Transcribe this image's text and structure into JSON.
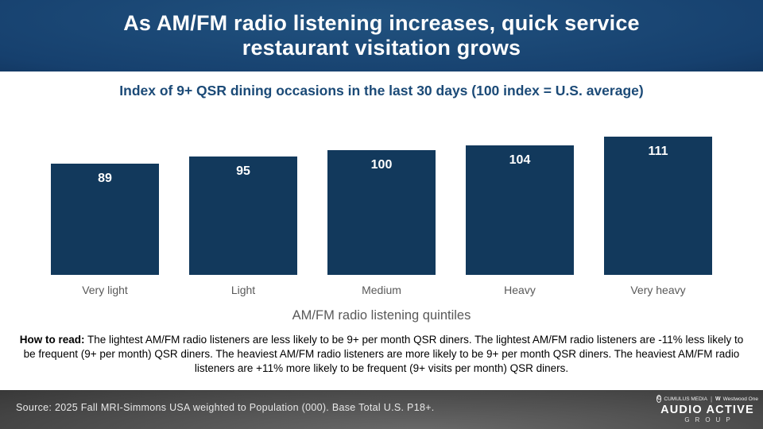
{
  "header": {
    "title_lines": [
      "As AM/FM radio listening increases, quick service",
      "restaurant visitation grows"
    ]
  },
  "chart_data": {
    "type": "bar",
    "title": "Index of 9+ QSR dining occasions in the last 30 days (100 index = U.S. average)",
    "categories": [
      "Very light",
      "Light",
      "Medium",
      "Heavy",
      "Very heavy"
    ],
    "values": [
      89,
      95,
      100,
      104,
      111
    ],
    "xlabel": "AM/FM radio listening quintiles",
    "ylabel": "",
    "ylim": [
      0,
      111
    ],
    "grid": false,
    "legend": false,
    "bar_color": "#12395c",
    "value_label_color": "#ffffff",
    "category_label_color": "#595959"
  },
  "how_to_read": {
    "label": "How to read:",
    "text": " The lightest AM/FM radio listeners are less likely to be 9+ per month QSR diners. The lightest AM/FM radio listeners are -11% less likely to be frequent (9+ per month) QSR diners. The heaviest AM/FM radio listeners are more likely to be 9+ per month QSR diners. The heaviest AM/FM radio listeners are +11% more likely to be frequent (9+ visits per month) QSR diners."
  },
  "footer": {
    "source": "Source: 2025 Fall MRI-Simmons USA weighted to Population (000). Base Total U.S. P18+.",
    "logo": {
      "cumulus_icon": "C",
      "brand_left": "CUMULUS MEDIA",
      "westwood_icon": "W",
      "brand_right": "Westwood One",
      "name": "AUDIO ACTIVE",
      "subname": "GROUP"
    }
  },
  "colors": {
    "header_blue_light": "#21527f",
    "header_blue_dark": "#071631",
    "bar_navy": "#12395c",
    "subtitle_navy": "#1b4a77",
    "label_gray": "#595959",
    "footer_gray_light": "#6a6a6a",
    "footer_gray_dark": "#1b1b1b"
  }
}
